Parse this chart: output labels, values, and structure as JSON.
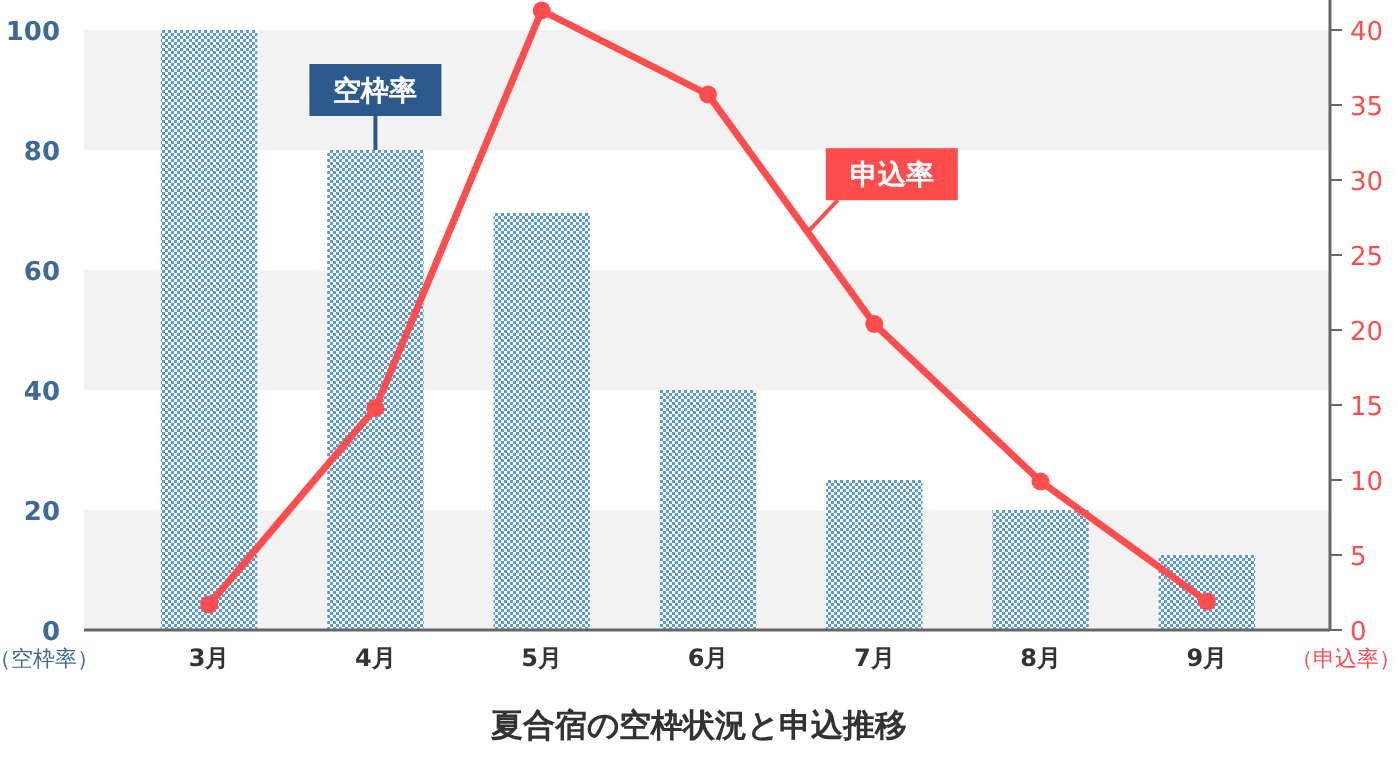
{
  "chart_data": {
    "type": "bar",
    "title": "夏合宿の空枠状況と申込推移",
    "ylabel": "（空枠率）",
    "y2label": "（申込率）",
    "categories": [
      "3月",
      "4月",
      "5月",
      "6月",
      "7月",
      "8月",
      "9月"
    ],
    "series": [
      {
        "name": "空枠率",
        "color": "#5b9bd5",
        "values": [
          100,
          80,
          69.5,
          40,
          25,
          20,
          12.5
        ]
      },
      {
        "name": "申込率",
        "type": "line",
        "axis": "y2",
        "color": "#ff4d4d",
        "marker": "circle",
        "values": [
          1.7,
          14.8,
          41.3,
          35.7,
          20.4,
          9.9,
          1.9
        ]
      }
    ],
    "ylim": [
      0,
      105
    ],
    "yticks": [
      0,
      20,
      40,
      60,
      80,
      100
    ],
    "y2lim": [
      0,
      42
    ],
    "y2ticks": [
      0,
      5,
      10,
      15,
      20,
      25,
      30,
      35,
      40
    ]
  }
}
